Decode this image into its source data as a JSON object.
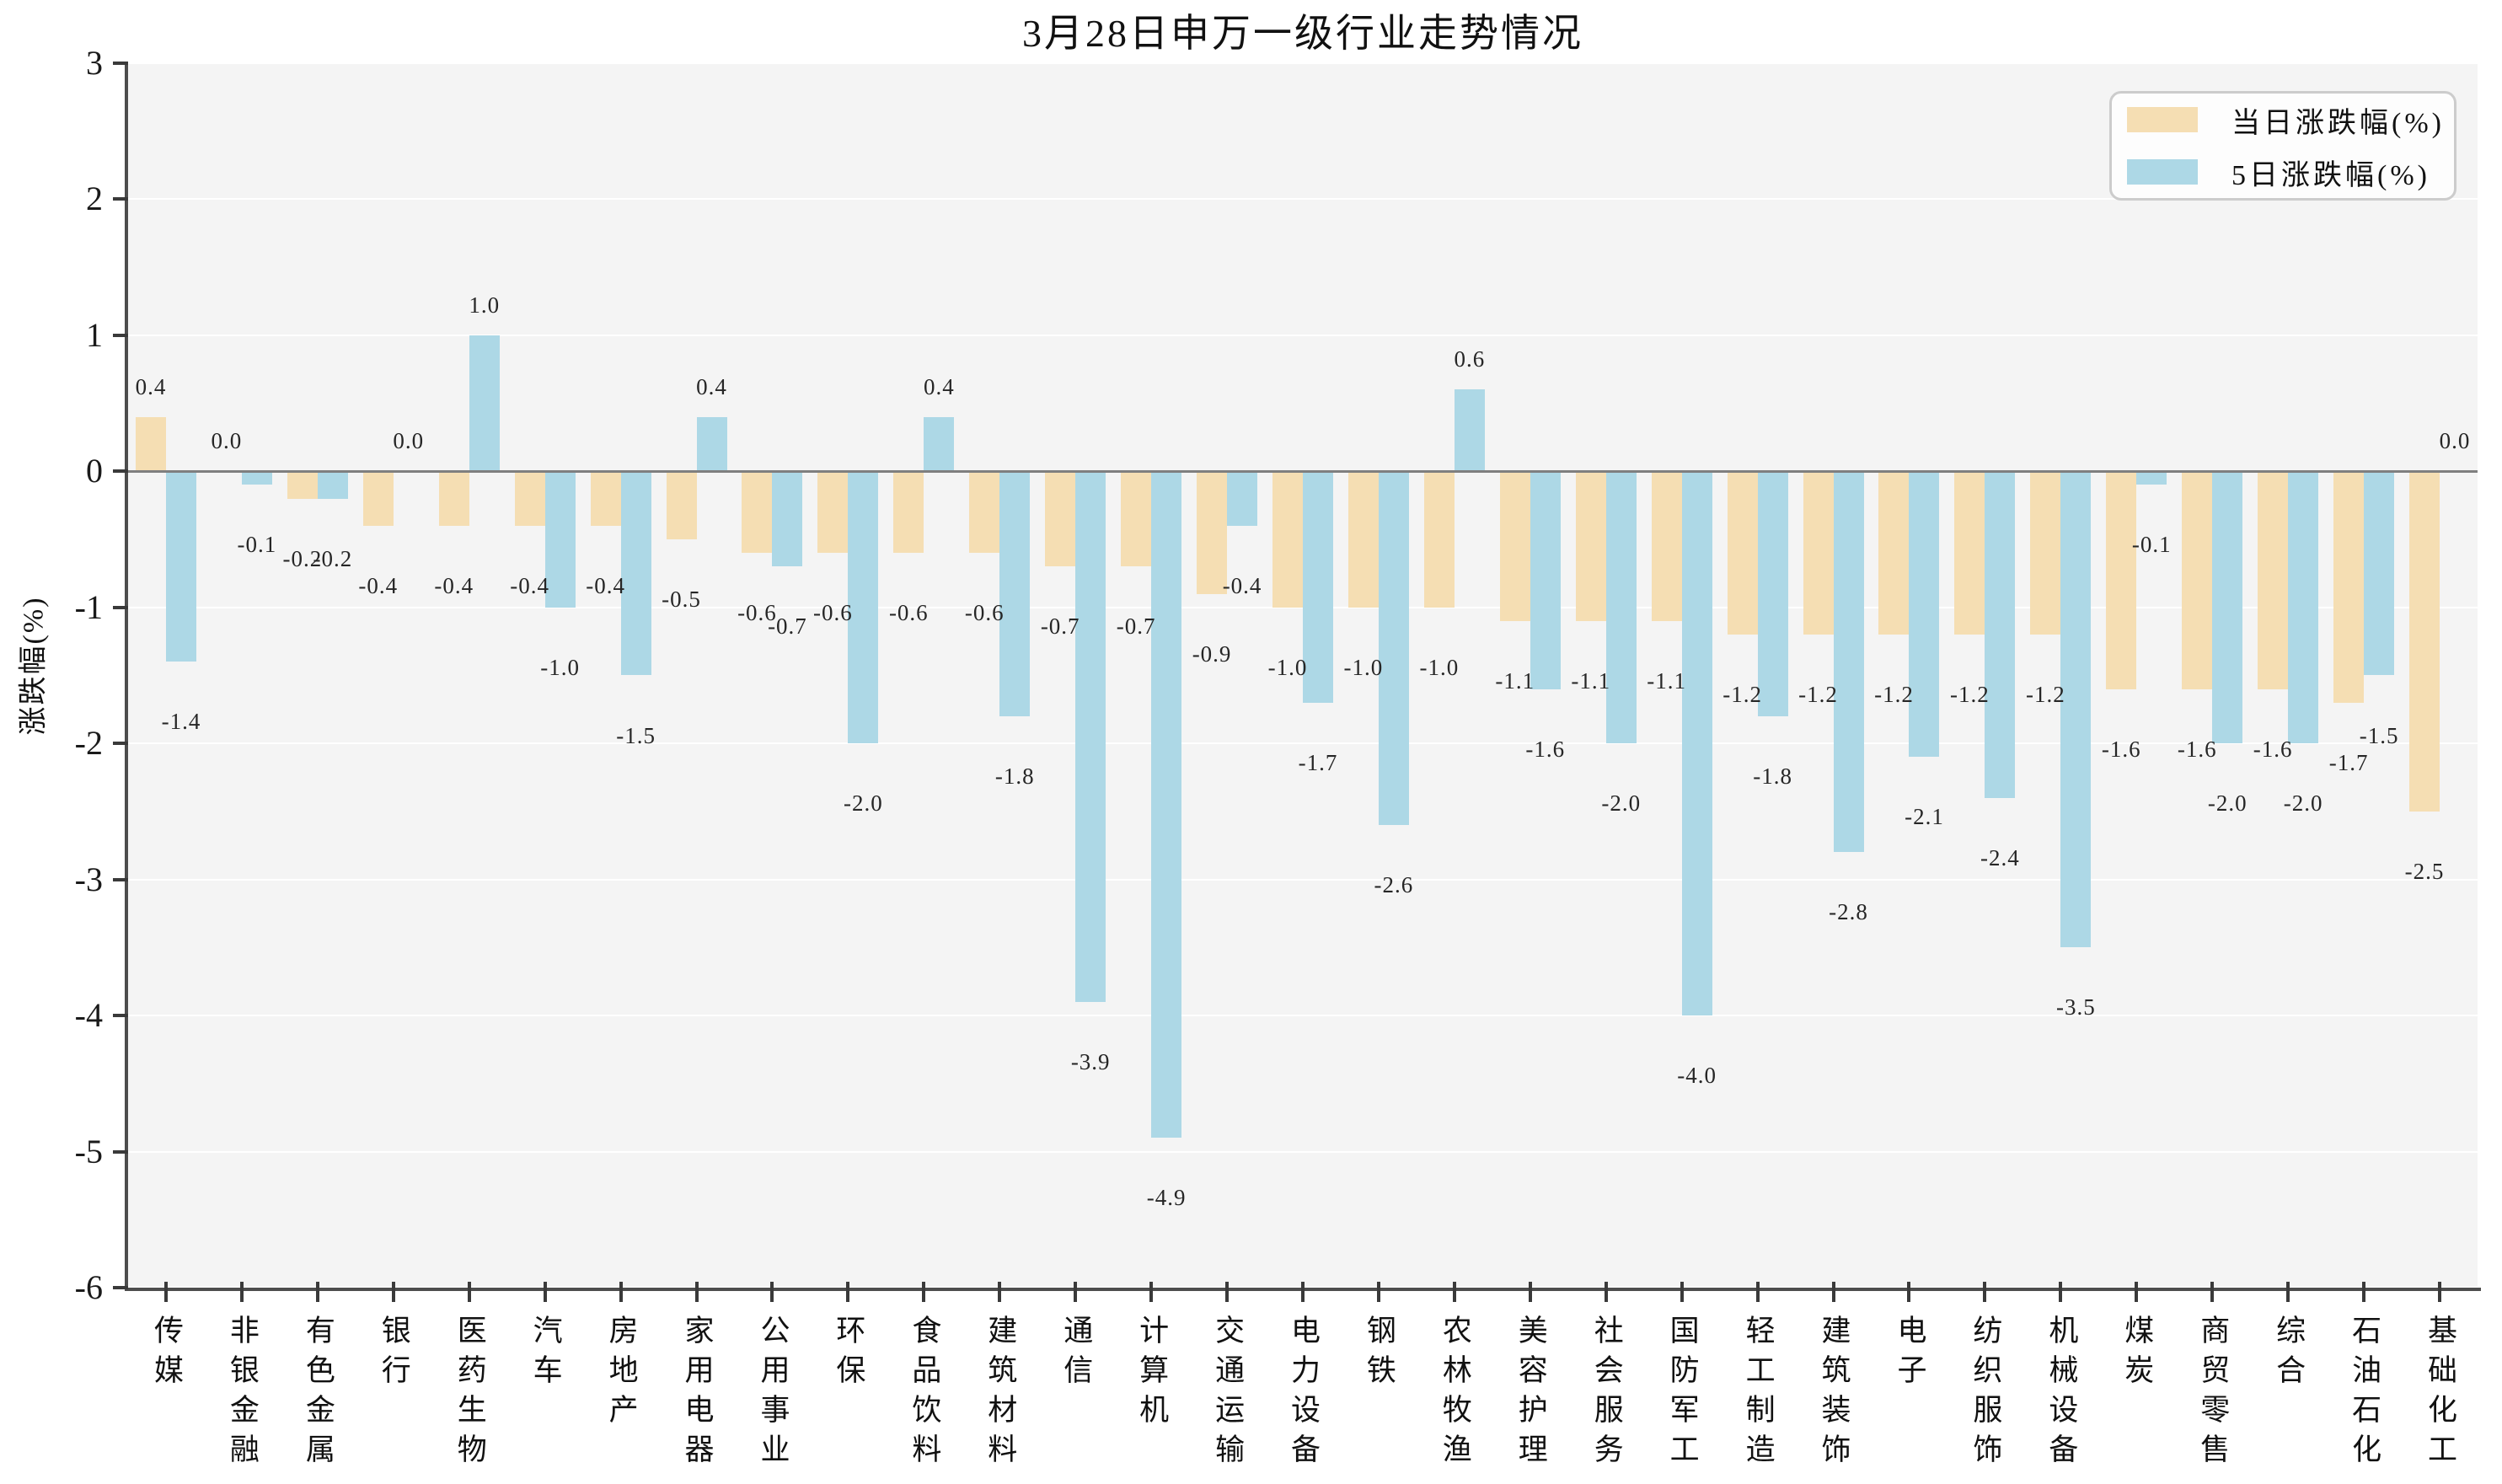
{
  "chart_data": {
    "type": "bar",
    "title": "3月28日申万一级行业走势情况",
    "xlabel": "",
    "ylabel": "涨跌幅(%)",
    "ylim": [
      -6,
      3
    ],
    "yticks": [
      3,
      2,
      1,
      0,
      -1,
      -2,
      -3,
      -4,
      -5,
      -6
    ],
    "grid": true,
    "legend_position": "upper-right",
    "value_labels_shown": true,
    "value_label_format": "one-decimal",
    "categories": [
      "传媒",
      "非银金融",
      "有色金属",
      "银行",
      "医药生物",
      "汽车",
      "房地产",
      "家用电器",
      "公用事业",
      "环保",
      "食品饮料",
      "建筑材料",
      "通信",
      "计算机",
      "交通运输",
      "电力设备",
      "钢铁",
      "农林牧渔",
      "美容护理",
      "社会服务",
      "国防军工",
      "轻工制造",
      "建筑装饰",
      "电子",
      "纺织服饰",
      "机械设备",
      "煤炭",
      "商贸零售",
      "综合",
      "石油石化",
      "基础化工"
    ],
    "series": [
      {
        "name": "当日涨跌幅(%)",
        "color": "#f5deb3",
        "values": [
          0.4,
          0.0,
          -0.2,
          -0.4,
          -0.4,
          -0.4,
          -0.4,
          -0.5,
          -0.6,
          -0.6,
          -0.6,
          -0.6,
          -0.7,
          -0.7,
          -0.9,
          -1.0,
          -1.0,
          -1.0,
          -1.1,
          -1.1,
          -1.1,
          -1.2,
          -1.2,
          -1.2,
          -1.2,
          -1.2,
          -1.6,
          -1.6,
          -1.6,
          -1.7,
          -2.5
        ]
      },
      {
        "name": "5日涨跌幅(%)",
        "color": "#add8e6",
        "values": [
          -1.4,
          -0.1,
          -0.2,
          0.0,
          1.0,
          -1.0,
          -1.5,
          0.4,
          -0.7,
          -2.0,
          0.4,
          -1.8,
          -3.9,
          -4.9,
          -0.4,
          -1.7,
          -2.6,
          0.6,
          -1.6,
          -2.0,
          -4.0,
          -1.8,
          -2.8,
          -2.1,
          -2.4,
          -3.5,
          -0.1,
          -2.0,
          -2.0,
          -1.5,
          0.0
        ]
      }
    ],
    "colors": {
      "plot_background": "#f4f4f4",
      "gridline": "#ffffff",
      "zero_line": "#7f7f7f",
      "spine": "#4d4d4d",
      "text": "#1a1a1a",
      "legend_border": "#cccccc",
      "legend_background": "#fdfdfd"
    }
  }
}
